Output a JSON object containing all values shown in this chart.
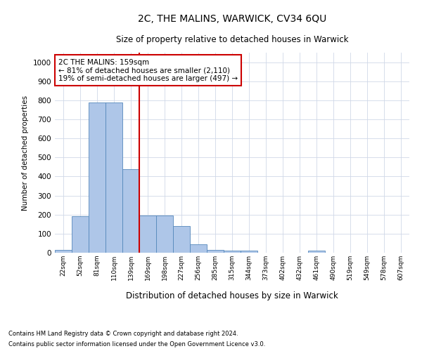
{
  "title": "2C, THE MALINS, WARWICK, CV34 6QU",
  "subtitle": "Size of property relative to detached houses in Warwick",
  "xlabel": "Distribution of detached houses by size in Warwick",
  "ylabel": "Number of detached properties",
  "categories": [
    "22sqm",
    "52sqm",
    "81sqm",
    "110sqm",
    "139sqm",
    "169sqm",
    "198sqm",
    "227sqm",
    "256sqm",
    "285sqm",
    "315sqm",
    "344sqm",
    "373sqm",
    "402sqm",
    "432sqm",
    "461sqm",
    "490sqm",
    "519sqm",
    "549sqm",
    "578sqm",
    "607sqm"
  ],
  "bar_heights": [
    15,
    190,
    790,
    790,
    440,
    195,
    195,
    140,
    45,
    15,
    10,
    10,
    0,
    0,
    0,
    10,
    0,
    0,
    0,
    0,
    0
  ],
  "bar_color": "#aec6e8",
  "bar_edge_color": "#5588bb",
  "vline_x": 5.0,
  "vline_color": "#cc0000",
  "ylim": [
    0,
    1050
  ],
  "yticks": [
    0,
    100,
    200,
    300,
    400,
    500,
    600,
    700,
    800,
    900,
    1000
  ],
  "annotation_text": "2C THE MALINS: 159sqm\n← 81% of detached houses are smaller (2,110)\n19% of semi-detached houses are larger (497) →",
  "annotation_box_color": "#ffffff",
  "annotation_box_edge": "#cc0000",
  "footer_line1": "Contains HM Land Registry data © Crown copyright and database right 2024.",
  "footer_line2": "Contains public sector information licensed under the Open Government Licence v3.0.",
  "background_color": "#ffffff",
  "grid_color": "#d0d8e8"
}
